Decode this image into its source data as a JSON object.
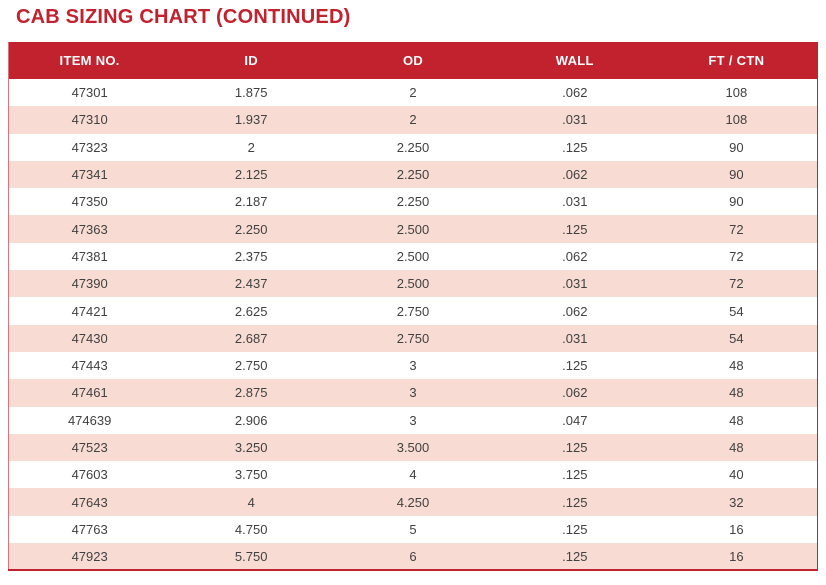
{
  "page": {
    "title": "CAB SIZING CHART (CONTINUED)"
  },
  "colors": {
    "accent_red": "#c2212e",
    "row_pink": "#f8dcd3",
    "header_text": "#ffffff",
    "body_text": "#414141"
  },
  "table": {
    "columns": [
      "ITEM NO.",
      "ID",
      "OD",
      "WALL",
      "FT / CTN"
    ],
    "rows": [
      [
        "47301",
        "1.875",
        "2",
        ".062",
        "108"
      ],
      [
        "47310",
        "1.937",
        "2",
        ".031",
        "108"
      ],
      [
        "47323",
        "2",
        "2.250",
        ".125",
        "90"
      ],
      [
        "47341",
        "2.125",
        "2.250",
        ".062",
        "90"
      ],
      [
        "47350",
        "2.187",
        "2.250",
        ".031",
        "90"
      ],
      [
        "47363",
        "2.250",
        "2.500",
        ".125",
        "72"
      ],
      [
        "47381",
        "2.375",
        "2.500",
        ".062",
        "72"
      ],
      [
        "47390",
        "2.437",
        "2.500",
        ".031",
        "72"
      ],
      [
        "47421",
        "2.625",
        "2.750",
        ".062",
        "54"
      ],
      [
        "47430",
        "2.687",
        "2.750",
        ".031",
        "54"
      ],
      [
        "47443",
        "2.750",
        "3",
        ".125",
        "48"
      ],
      [
        "47461",
        "2.875",
        "3",
        ".062",
        "48"
      ],
      [
        "474639",
        "2.906",
        "3",
        ".047",
        "48"
      ],
      [
        "47523",
        "3.250",
        "3.500",
        ".125",
        "48"
      ],
      [
        "47603",
        "3.750",
        "4",
        ".125",
        "40"
      ],
      [
        "47643",
        "4",
        "4.250",
        ".125",
        "32"
      ],
      [
        "47763",
        "4.750",
        "5",
        ".125",
        "16"
      ],
      [
        "47923",
        "5.750",
        "6",
        ".125",
        "16"
      ]
    ]
  }
}
